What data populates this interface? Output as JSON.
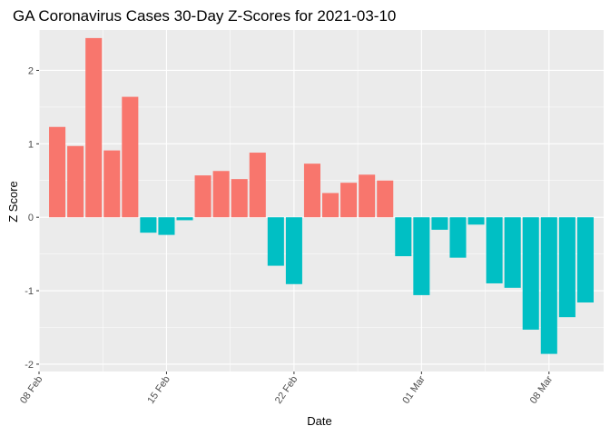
{
  "chart_data": {
    "type": "bar",
    "title": "GA Coronavirus Cases 30-Day Z-Scores for 2021-03-10",
    "xlabel": "Date",
    "ylabel": "Z Score",
    "x": [
      "2021-02-09",
      "2021-02-10",
      "2021-02-11",
      "2021-02-12",
      "2021-02-13",
      "2021-02-14",
      "2021-02-15",
      "2021-02-16",
      "2021-02-17",
      "2021-02-18",
      "2021-02-19",
      "2021-02-20",
      "2021-02-21",
      "2021-02-22",
      "2021-02-23",
      "2021-02-24",
      "2021-02-25",
      "2021-02-26",
      "2021-02-27",
      "2021-02-28",
      "2021-03-01",
      "2021-03-02",
      "2021-03-03",
      "2021-03-04",
      "2021-03-05",
      "2021-03-06",
      "2021-03-07",
      "2021-03-08",
      "2021-03-09",
      "2021-03-10"
    ],
    "values": [
      1.23,
      0.97,
      2.44,
      0.91,
      1.64,
      -0.21,
      -0.24,
      -0.04,
      0.57,
      0.63,
      0.52,
      0.88,
      -0.66,
      -0.91,
      0.73,
      0.33,
      0.47,
      0.58,
      0.5,
      -0.53,
      -1.06,
      -0.17,
      -0.55,
      -0.1,
      -0.9,
      -0.96,
      -1.53,
      -1.86,
      -1.36,
      -1.16
    ],
    "x_ticks": [
      {
        "date": "2021-02-08",
        "label": "08 Feb"
      },
      {
        "date": "2021-02-15",
        "label": "15 Feb"
      },
      {
        "date": "2021-02-22",
        "label": "22 Feb"
      },
      {
        "date": "2021-03-01",
        "label": "01 Mar"
      },
      {
        "date": "2021-03-08",
        "label": "08 Mar"
      }
    ],
    "y_ticks": [
      -2,
      -1,
      0,
      1,
      2
    ],
    "xlim": [
      "2021-02-08",
      "2021-03-11"
    ],
    "ylim": [
      -2.1,
      2.55
    ],
    "colors": {
      "positive": "#F8766D",
      "negative": "#00BFC4",
      "panel": "#EBEBEB",
      "grid": "#FFFFFF"
    },
    "grid": true,
    "legend": "none"
  }
}
